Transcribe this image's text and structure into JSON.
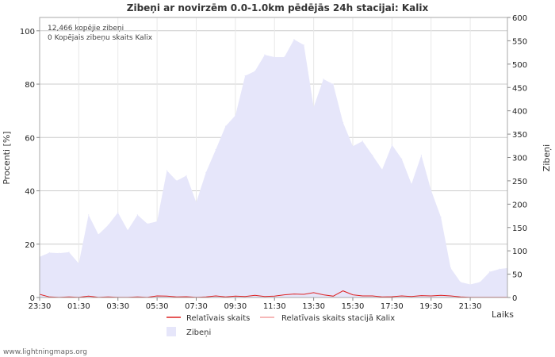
{
  "chart_data": {
    "type": "area",
    "title": "Zibeņi ar novirzēm 0.0-1.0km pēdējās 24h stacijai: Kalix",
    "ylabel_left": "Procenti   [%]",
    "ylabel_right": "Zibeņi",
    "xlabel": "Laiks",
    "ylim_left": [
      0,
      105
    ],
    "ylim_right": [
      0,
      600
    ],
    "yticks_left": [
      0,
      20,
      40,
      60,
      80,
      100
    ],
    "yticks_right": [
      0,
      50,
      100,
      150,
      200,
      250,
      300,
      350,
      400,
      450,
      500,
      550,
      600
    ],
    "x_start_minutes": 1410,
    "x_range_hours": [
      0,
      23.9
    ],
    "x_ticks": [
      "23:30",
      "01:30",
      "03:30",
      "05:30",
      "07:30",
      "09:30",
      "11:30",
      "13:30",
      "15:30",
      "17:30",
      "19:30",
      "21:30"
    ],
    "grid": true,
    "annotations": [
      "12,466 kopējie zibeņi",
      "0 Kopējais zibeņu skaits Kalix"
    ],
    "series": [
      {
        "name": "Zibeņi",
        "axis": "right",
        "color": "#e6e6fa",
        "x_hours": [
          0,
          0.5,
          1.0,
          1.5,
          2.0,
          2.5,
          3.0,
          3.5,
          4.0,
          4.5,
          5.0,
          5.5,
          6.0,
          6.5,
          7.0,
          7.5,
          8.0,
          8.5,
          9.0,
          9.5,
          10.0,
          10.5,
          11.0,
          11.5,
          12.0,
          12.5,
          13.0,
          13.5,
          14.0,
          14.5,
          15.0,
          15.5,
          16.0,
          16.5,
          17.0,
          17.5,
          18.0,
          18.5,
          19.0,
          19.5,
          20.0,
          20.5,
          21.0,
          21.5,
          22.0,
          22.5,
          23.0,
          23.5,
          23.9
        ],
        "values": [
          87,
          96,
          95,
          97,
          73,
          177,
          135,
          155,
          182,
          144,
          177,
          158,
          163,
          272,
          250,
          261,
          204,
          268,
          317,
          367,
          390,
          475,
          485,
          520,
          515,
          515,
          553,
          541,
          408,
          468,
          457,
          375,
          324,
          335,
          305,
          274,
          327,
          297,
          243,
          305,
          230,
          172,
          63,
          33,
          28,
          33,
          55,
          61,
          63
        ]
      },
      {
        "name": "Relatīvais skaits",
        "axis": "left",
        "color": "#dd2222",
        "x_hours": [
          0,
          0.5,
          1.0,
          1.5,
          2.0,
          2.5,
          3.0,
          3.5,
          4.0,
          4.5,
          5.0,
          5.5,
          6.0,
          6.5,
          7.0,
          7.5,
          8.0,
          8.5,
          9.0,
          9.5,
          10.0,
          10.5,
          11.0,
          11.5,
          12.0,
          12.5,
          13.0,
          13.5,
          14.0,
          14.5,
          15.0,
          15.5,
          16.0,
          16.5,
          17.0,
          17.5,
          18.0,
          18.5,
          19.0,
          19.5,
          20.0,
          20.5,
          21.0,
          21.5,
          22.0,
          22.5,
          23.0,
          23.5,
          23.9
        ],
        "values": [
          1.2,
          0.2,
          0.1,
          0.2,
          0.1,
          0.5,
          0.1,
          0.2,
          0.1,
          0.1,
          0.2,
          0.1,
          0.6,
          0.5,
          0.2,
          0.3,
          0.1,
          0.2,
          0.6,
          0.2,
          0.5,
          0.4,
          0.8,
          0.4,
          0.5,
          1.0,
          1.3,
          1.2,
          1.8,
          1.0,
          0.5,
          2.5,
          1.0,
          0.6,
          0.6,
          0.2,
          0.3,
          0.6,
          0.4,
          0.7,
          0.6,
          0.8,
          0.6,
          0.2,
          0.1,
          0.1,
          0.1,
          0.1,
          0.1
        ]
      },
      {
        "name": "Relatīvais skaits stacijā Kalix",
        "axis": "left",
        "color": "#f4a0a0",
        "x_hours": [
          0,
          23.9
        ],
        "values": [
          0,
          0
        ]
      }
    ]
  },
  "credit": "www.lightningmaps.org"
}
